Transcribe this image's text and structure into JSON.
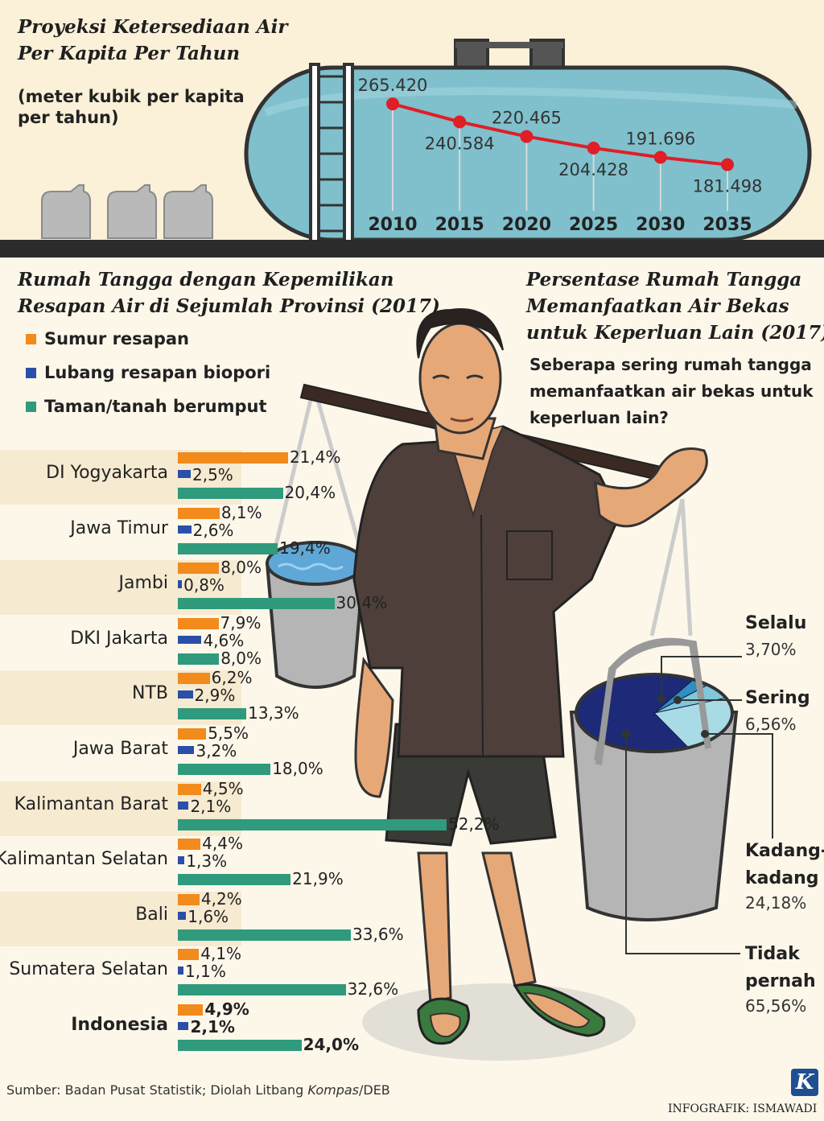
{
  "line_section": {
    "title_line1": "Proyeksi Ketersediaan Air",
    "title_line2": "Per Kapita Per Tahun",
    "unit_line1": "(meter kubik per kapita",
    "unit_line2": "per tahun)"
  },
  "bar_section": {
    "title_line1": "Rumah Tangga dengan Kepemilikan",
    "title_line2": "Resapan Air di Sejumlah Provinsi (2017)"
  },
  "pie_section": {
    "title_line1": "Persentase Rumah Tangga",
    "title_line2": "Memanfaatkan Air Bekas",
    "title_line3": "untuk Keperluan Lain (2017)",
    "question_line1": "Seberapa sering rumah tangga",
    "question_line2": "memanfaatkan air bekas untuk",
    "question_line3": "keperluan lain?"
  },
  "footer": {
    "source_prefix": "Sumber: Badan Pusat Statistik; Diolah Litbang ",
    "source_italic": "Kompas",
    "source_suffix": "/DEB",
    "credit": "INFOGRAFIK: ISMAWADI",
    "logo_letter": "K"
  },
  "colors": {
    "sumur": "#f28a1c",
    "biopori": "#2a4fa8",
    "taman": "#2f9a7c",
    "tank": "#7fc0cc",
    "line": "#e01e26",
    "pie_dark": "#1d2a78",
    "pie_mid": "#2e8fc0",
    "pie_light": "#7ec8da",
    "pie_pale": "#a9dbe6"
  },
  "chart_data": [
    {
      "type": "line",
      "x": [
        "2010",
        "2015",
        "2020",
        "2025",
        "2030",
        "2035"
      ],
      "values": [
        265420,
        240584,
        220465,
        204428,
        191696,
        181498
      ],
      "value_labels": [
        "265.420",
        "240.584",
        "220.465",
        "204.428",
        "191.696",
        "181.498"
      ]
    },
    {
      "type": "bar",
      "orientation": "horizontal",
      "categories": [
        "DI Yogyakarta",
        "Jawa Timur",
        "Jambi",
        "DKI Jakarta",
        "NTB",
        "Jawa Barat",
        "Kalimantan Barat",
        "Kalimantan Selatan",
        "Bali",
        "Sumatera Selatan",
        "Indonesia"
      ],
      "series": [
        {
          "name": "Sumur resapan",
          "values": [
            21.4,
            8.1,
            8.0,
            7.9,
            6.2,
            5.5,
            4.5,
            4.4,
            4.2,
            4.1,
            4.9
          ],
          "labels": [
            "21,4%",
            "8,1%",
            "8,0%",
            "7,9%",
            "6,2%",
            "5,5%",
            "4,5%",
            "4,4%",
            "4,2%",
            "4,1%",
            "4,9%"
          ]
        },
        {
          "name": "Lubang resapan biopori",
          "values": [
            2.5,
            2.6,
            0.8,
            4.6,
            2.9,
            3.2,
            2.1,
            1.3,
            1.6,
            1.1,
            2.1
          ],
          "labels": [
            "2,5%",
            "2,6%",
            "0,8%",
            "4,6%",
            "2,9%",
            "3,2%",
            "2,1%",
            "1,3%",
            "1,6%",
            "1,1%",
            "2,1%"
          ]
        },
        {
          "name": "Taman/tanah berumput",
          "values": [
            20.4,
            19.4,
            30.4,
            8.0,
            13.3,
            18.0,
            52.2,
            21.9,
            33.6,
            32.6,
            24.0
          ],
          "labels": [
            "20,4%",
            "19,4%",
            "30,4%",
            "8,0%",
            "13,3%",
            "18,0%",
            "52,2%",
            "21,9%",
            "33,6%",
            "32,6%",
            "24,0%"
          ]
        }
      ]
    },
    {
      "type": "pie",
      "categories": [
        "Selalu",
        "Sering",
        "Kadang-kadang",
        "Tidak pernah"
      ],
      "values": [
        3.7,
        6.56,
        24.18,
        65.56
      ],
      "labels": [
        "3,70%",
        "6,56%",
        "24,18%",
        "65,56%"
      ],
      "label_lines": [
        [
          "Selalu"
        ],
        [
          "Sering"
        ],
        [
          "Kadang-",
          "kadang"
        ],
        [
          "Tidak",
          "pernah"
        ]
      ]
    }
  ]
}
